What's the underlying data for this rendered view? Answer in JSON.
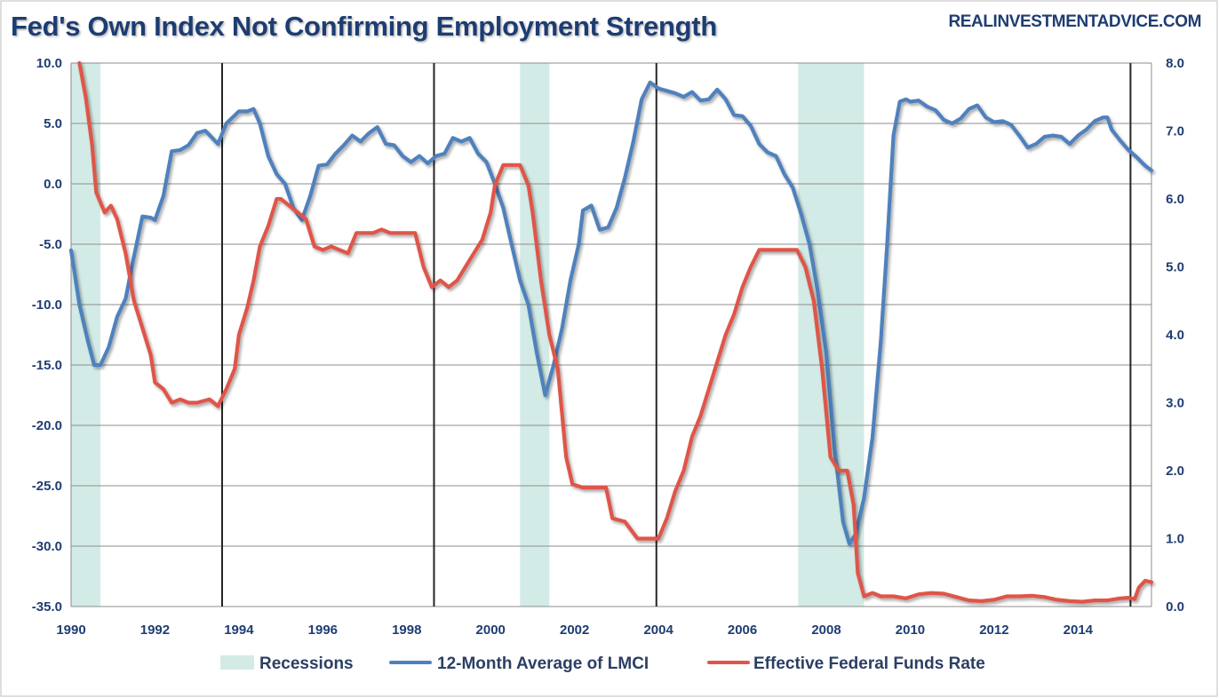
{
  "chart_data": {
    "type": "line",
    "title": "Fed's Own Index Not Confirming Employment Strength",
    "source": "REALINVESTMENTADVICE.COM",
    "x_ticks": [
      "1990",
      "1992",
      "1994",
      "1996",
      "1998",
      "2000",
      "2002",
      "2004",
      "2006",
      "2008",
      "2010",
      "2012",
      "2014"
    ],
    "xlim": [
      1990.0,
      2015.75
    ],
    "y_left": {
      "min": -35,
      "max": 10,
      "ticks": [
        "10.0",
        "5.0",
        "0.0",
        "-5.0",
        "-10.0",
        "-15.0",
        "-20.0",
        "-25.0",
        "-30.0",
        "-35.0"
      ]
    },
    "y_right": {
      "min": 0,
      "max": 8,
      "ticks": [
        "8.0",
        "7.0",
        "6.0",
        "5.0",
        "4.0",
        "3.0",
        "2.0",
        "1.0",
        "0.0"
      ]
    },
    "grid": true,
    "legend_position": "bottom",
    "recessions": [
      [
        1990.0,
        1990.7
      ],
      [
        2000.7,
        2001.4
      ],
      [
        2007.33,
        2008.9
      ]
    ],
    "markers": [
      1993.6,
      1998.65,
      2003.95,
      2015.25
    ],
    "series": [
      {
        "name": "12-Month Average of LMCI",
        "axis": "left",
        "color": "#4f81bd",
        "points": [
          [
            1990.0,
            -5.5
          ],
          [
            1990.2,
            -10
          ],
          [
            1990.4,
            -13
          ],
          [
            1990.55,
            -15
          ],
          [
            1990.7,
            -15
          ],
          [
            1990.9,
            -13.5
          ],
          [
            1991.1,
            -11
          ],
          [
            1991.3,
            -9.5
          ],
          [
            1991.5,
            -6
          ],
          [
            1991.7,
            -2.7
          ],
          [
            1991.9,
            -2.8
          ],
          [
            1992.0,
            -3
          ],
          [
            1992.2,
            -1
          ],
          [
            1992.4,
            2.7
          ],
          [
            1992.6,
            2.8
          ],
          [
            1992.8,
            3.2
          ],
          [
            1993.0,
            4.2
          ],
          [
            1993.2,
            4.4
          ],
          [
            1993.5,
            3.3
          ],
          [
            1993.7,
            5
          ],
          [
            1994.0,
            6
          ],
          [
            1994.2,
            6
          ],
          [
            1994.35,
            6.2
          ],
          [
            1994.5,
            5
          ],
          [
            1994.7,
            2.3
          ],
          [
            1994.9,
            0.8
          ],
          [
            1995.1,
            0
          ],
          [
            1995.3,
            -2
          ],
          [
            1995.5,
            -3
          ],
          [
            1995.7,
            -1
          ],
          [
            1995.9,
            1.5
          ],
          [
            1996.1,
            1.6
          ],
          [
            1996.3,
            2.5
          ],
          [
            1996.5,
            3.2
          ],
          [
            1996.7,
            4
          ],
          [
            1996.9,
            3.5
          ],
          [
            1997.1,
            4.2
          ],
          [
            1997.3,
            4.7
          ],
          [
            1997.5,
            3.3
          ],
          [
            1997.7,
            3.2
          ],
          [
            1997.9,
            2.3
          ],
          [
            1998.1,
            1.8
          ],
          [
            1998.3,
            2.3
          ],
          [
            1998.5,
            1.7
          ],
          [
            1998.7,
            2.3
          ],
          [
            1998.9,
            2.5
          ],
          [
            1999.1,
            3.8
          ],
          [
            1999.3,
            3.5
          ],
          [
            1999.5,
            3.8
          ],
          [
            1999.7,
            2.5
          ],
          [
            1999.9,
            1.8
          ],
          [
            2000.1,
            0
          ],
          [
            2000.3,
            -2
          ],
          [
            2000.5,
            -5
          ],
          [
            2000.7,
            -8
          ],
          [
            2000.9,
            -10
          ],
          [
            2001.1,
            -14
          ],
          [
            2001.3,
            -17.5
          ],
          [
            2001.5,
            -15
          ],
          [
            2001.7,
            -12
          ],
          [
            2001.9,
            -8
          ],
          [
            2002.1,
            -5
          ],
          [
            2002.2,
            -2.2
          ],
          [
            2002.4,
            -1.8
          ],
          [
            2002.6,
            -3.8
          ],
          [
            2002.8,
            -3.6
          ],
          [
            2003.0,
            -2
          ],
          [
            2003.2,
            0.5
          ],
          [
            2003.4,
            3.5
          ],
          [
            2003.6,
            7
          ],
          [
            2003.8,
            8.4
          ],
          [
            2004.0,
            7.9
          ],
          [
            2004.2,
            7.7
          ],
          [
            2004.4,
            7.5
          ],
          [
            2004.6,
            7.2
          ],
          [
            2004.8,
            7.6
          ],
          [
            2005.0,
            6.9
          ],
          [
            2005.2,
            7
          ],
          [
            2005.4,
            7.8
          ],
          [
            2005.6,
            7
          ],
          [
            2005.8,
            5.7
          ],
          [
            2006.0,
            5.6
          ],
          [
            2006.2,
            4.8
          ],
          [
            2006.4,
            3.3
          ],
          [
            2006.6,
            2.6
          ],
          [
            2006.8,
            2.3
          ],
          [
            2007.0,
            0.8
          ],
          [
            2007.2,
            -0.3
          ],
          [
            2007.4,
            -2.5
          ],
          [
            2007.6,
            -5
          ],
          [
            2007.8,
            -9
          ],
          [
            2008.0,
            -14
          ],
          [
            2008.2,
            -22
          ],
          [
            2008.4,
            -28
          ],
          [
            2008.55,
            -29.8
          ],
          [
            2008.7,
            -29
          ],
          [
            2008.9,
            -26
          ],
          [
            2009.1,
            -21
          ],
          [
            2009.3,
            -13
          ],
          [
            2009.45,
            -5
          ],
          [
            2009.6,
            4
          ],
          [
            2009.75,
            6.8
          ],
          [
            2009.9,
            7
          ],
          [
            2010.0,
            6.8
          ],
          [
            2010.2,
            6.9
          ],
          [
            2010.4,
            6.4
          ],
          [
            2010.6,
            6.1
          ],
          [
            2010.8,
            5.3
          ],
          [
            2011.0,
            5
          ],
          [
            2011.2,
            5.4
          ],
          [
            2011.4,
            6.2
          ],
          [
            2011.6,
            6.5
          ],
          [
            2011.8,
            5.5
          ],
          [
            2012.0,
            5.1
          ],
          [
            2012.2,
            5.2
          ],
          [
            2012.4,
            4.9
          ],
          [
            2012.6,
            4
          ],
          [
            2012.8,
            3
          ],
          [
            2013.0,
            3.3
          ],
          [
            2013.2,
            3.9
          ],
          [
            2013.4,
            4
          ],
          [
            2013.6,
            3.9
          ],
          [
            2013.8,
            3.3
          ],
          [
            2014.0,
            4
          ],
          [
            2014.2,
            4.5
          ],
          [
            2014.4,
            5.2
          ],
          [
            2014.6,
            5.5
          ],
          [
            2014.7,
            5.5
          ],
          [
            2014.8,
            4.5
          ],
          [
            2015.0,
            3.6
          ],
          [
            2015.2,
            2.8
          ],
          [
            2015.4,
            2.2
          ],
          [
            2015.6,
            1.5
          ],
          [
            2015.75,
            1.1
          ]
        ]
      },
      {
        "name": "Effective Federal Funds Rate",
        "axis": "right",
        "color": "#e0544a",
        "points": [
          [
            1990.2,
            8.1
          ],
          [
            1990.35,
            7.5
          ],
          [
            1990.5,
            6.8
          ],
          [
            1990.6,
            6.1
          ],
          [
            1990.8,
            5.8
          ],
          [
            1990.95,
            5.9
          ],
          [
            1991.1,
            5.7
          ],
          [
            1991.3,
            5.2
          ],
          [
            1991.5,
            4.5
          ],
          [
            1991.7,
            4.1
          ],
          [
            1991.9,
            3.7
          ],
          [
            1992.0,
            3.3
          ],
          [
            1992.2,
            3.2
          ],
          [
            1992.4,
            3.0
          ],
          [
            1992.6,
            3.05
          ],
          [
            1992.8,
            3.0
          ],
          [
            1993.0,
            3.0
          ],
          [
            1993.3,
            3.05
          ],
          [
            1993.5,
            2.95
          ],
          [
            1993.7,
            3.2
          ],
          [
            1993.9,
            3.5
          ],
          [
            1994.0,
            4.0
          ],
          [
            1994.2,
            4.4
          ],
          [
            1994.35,
            4.8
          ],
          [
            1994.5,
            5.3
          ],
          [
            1994.7,
            5.6
          ],
          [
            1994.9,
            6.0
          ],
          [
            1995.0,
            6.0
          ],
          [
            1995.2,
            5.9
          ],
          [
            1995.4,
            5.8
          ],
          [
            1995.6,
            5.7
          ],
          [
            1995.8,
            5.3
          ],
          [
            1996.0,
            5.25
          ],
          [
            1996.2,
            5.3
          ],
          [
            1996.4,
            5.25
          ],
          [
            1996.6,
            5.2
          ],
          [
            1996.8,
            5.5
          ],
          [
            1997.0,
            5.5
          ],
          [
            1997.2,
            5.5
          ],
          [
            1997.4,
            5.55
          ],
          [
            1997.6,
            5.5
          ],
          [
            1997.8,
            5.5
          ],
          [
            1998.0,
            5.5
          ],
          [
            1998.2,
            5.5
          ],
          [
            1998.4,
            5.0
          ],
          [
            1998.6,
            4.7
          ],
          [
            1998.8,
            4.8
          ],
          [
            1999.0,
            4.7
          ],
          [
            1999.2,
            4.8
          ],
          [
            1999.4,
            5.0
          ],
          [
            1999.6,
            5.2
          ],
          [
            1999.8,
            5.4
          ],
          [
            2000.0,
            5.8
          ],
          [
            2000.1,
            6.2
          ],
          [
            2000.3,
            6.5
          ],
          [
            2000.5,
            6.5
          ],
          [
            2000.7,
            6.5
          ],
          [
            2000.9,
            6.2
          ],
          [
            2001.0,
            5.8
          ],
          [
            2001.2,
            4.8
          ],
          [
            2001.4,
            4.0
          ],
          [
            2001.6,
            3.5
          ],
          [
            2001.8,
            2.2
          ],
          [
            2001.95,
            1.8
          ],
          [
            2002.2,
            1.75
          ],
          [
            2002.5,
            1.75
          ],
          [
            2002.75,
            1.75
          ],
          [
            2002.9,
            1.3
          ],
          [
            2003.2,
            1.25
          ],
          [
            2003.5,
            1.0
          ],
          [
            2003.8,
            1.0
          ],
          [
            2004.0,
            1.0
          ],
          [
            2004.2,
            1.3
          ],
          [
            2004.4,
            1.7
          ],
          [
            2004.6,
            2.0
          ],
          [
            2004.8,
            2.5
          ],
          [
            2005.0,
            2.8
          ],
          [
            2005.2,
            3.2
          ],
          [
            2005.4,
            3.6
          ],
          [
            2005.6,
            4.0
          ],
          [
            2005.8,
            4.3
          ],
          [
            2006.0,
            4.7
          ],
          [
            2006.2,
            5.0
          ],
          [
            2006.4,
            5.25
          ],
          [
            2006.7,
            5.25
          ],
          [
            2007.0,
            5.25
          ],
          [
            2007.3,
            5.25
          ],
          [
            2007.5,
            5.0
          ],
          [
            2007.7,
            4.5
          ],
          [
            2007.9,
            3.5
          ],
          [
            2008.1,
            2.2
          ],
          [
            2008.3,
            2.0
          ],
          [
            2008.5,
            2.0
          ],
          [
            2008.65,
            1.5
          ],
          [
            2008.75,
            0.5
          ],
          [
            2008.9,
            0.15
          ],
          [
            2009.1,
            0.2
          ],
          [
            2009.3,
            0.15
          ],
          [
            2009.6,
            0.15
          ],
          [
            2009.9,
            0.12
          ],
          [
            2010.2,
            0.18
          ],
          [
            2010.5,
            0.2
          ],
          [
            2010.8,
            0.19
          ],
          [
            2011.1,
            0.14
          ],
          [
            2011.4,
            0.09
          ],
          [
            2011.7,
            0.08
          ],
          [
            2012.0,
            0.1
          ],
          [
            2012.3,
            0.15
          ],
          [
            2012.6,
            0.15
          ],
          [
            2012.9,
            0.16
          ],
          [
            2013.2,
            0.14
          ],
          [
            2013.5,
            0.1
          ],
          [
            2013.8,
            0.08
          ],
          [
            2014.1,
            0.07
          ],
          [
            2014.4,
            0.09
          ],
          [
            2014.7,
            0.09
          ],
          [
            2015.0,
            0.12
          ],
          [
            2015.2,
            0.13
          ],
          [
            2015.35,
            0.11
          ],
          [
            2015.45,
            0.28
          ],
          [
            2015.6,
            0.38
          ],
          [
            2015.75,
            0.36
          ]
        ]
      }
    ],
    "legend": [
      {
        "label": "Recessions",
        "kind": "area",
        "color": "#d3ebe6"
      },
      {
        "label": "12-Month Average of LMCI",
        "kind": "line",
        "color": "#4f81bd"
      },
      {
        "label": "Effective Federal Funds Rate",
        "kind": "line",
        "color": "#e0544a"
      }
    ]
  }
}
